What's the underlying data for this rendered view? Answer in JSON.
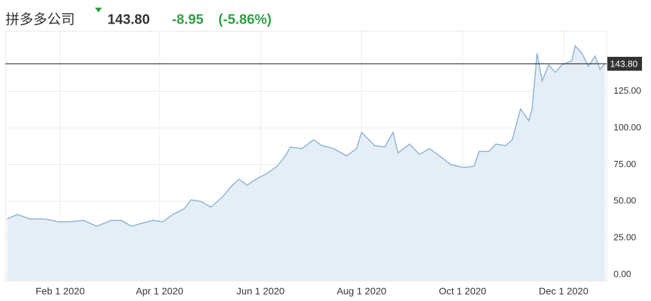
{
  "header": {
    "name": "拼多多公司",
    "price": "143.80",
    "change": "-8.95",
    "change_pct": "(-5.86%)"
  },
  "chart_data": {
    "type": "area",
    "x": [
      "2019-12-31",
      "2020-01-06",
      "2020-01-14",
      "2020-01-23",
      "2020-01-31",
      "2020-02-06",
      "2020-02-15",
      "2020-02-23",
      "2020-03-03",
      "2020-03-09",
      "2020-03-15",
      "2020-03-21",
      "2020-03-28",
      "2020-04-03",
      "2020-04-09",
      "2020-04-16",
      "2020-04-20",
      "2020-04-26",
      "2020-05-02",
      "2020-05-09",
      "2020-05-15",
      "2020-05-19",
      "2020-05-24",
      "2020-05-29",
      "2020-06-05",
      "2020-06-11",
      "2020-06-16",
      "2020-06-19",
      "2020-06-26",
      "2020-07-03",
      "2020-07-08",
      "2020-07-15",
      "2020-07-23",
      "2020-07-29",
      "2020-08-01",
      "2020-08-09",
      "2020-08-15",
      "2020-08-20",
      "2020-08-23",
      "2020-08-30",
      "2020-09-05",
      "2020-09-11",
      "2020-09-17",
      "2020-09-24",
      "2020-10-02",
      "2020-10-08",
      "2020-10-11",
      "2020-10-17",
      "2020-10-21",
      "2020-10-27",
      "2020-10-31",
      "2020-11-05",
      "2020-11-10",
      "2020-11-12",
      "2020-11-15",
      "2020-11-18",
      "2020-11-22",
      "2020-11-26",
      "2020-11-30",
      "2020-12-02",
      "2020-12-06",
      "2020-12-08",
      "2020-12-12",
      "2020-12-16",
      "2020-12-20",
      "2020-12-23",
      "2020-12-26"
    ],
    "series": [
      {
        "name": "拼多多公司",
        "color": "#8ab2d6",
        "fill": "#e5eef6",
        "values": [
          38,
          41,
          38,
          38,
          36,
          36,
          37,
          33,
          37,
          37,
          33,
          35,
          37,
          36,
          41,
          45,
          51,
          50,
          46,
          53,
          61,
          65,
          61,
          65,
          69,
          74,
          81,
          87,
          86,
          92,
          88,
          86,
          81,
          86,
          97,
          88,
          87,
          97,
          83,
          89,
          82,
          86,
          81,
          75,
          73,
          74,
          84,
          84,
          89,
          88,
          92,
          113,
          105,
          113,
          151,
          132,
          143,
          138,
          143,
          144,
          146,
          156,
          151,
          142,
          149,
          140,
          143.8
        ]
      }
    ],
    "xlim": [
      "2019-12-30",
      "2020-12-27"
    ],
    "xticks": [
      {
        "value": "2020-02-01",
        "label": "Feb 1 2020"
      },
      {
        "value": "2020-04-01",
        "label": "Apr 1 2020"
      },
      {
        "value": "2020-06-01",
        "label": "Jun 1 2020"
      },
      {
        "value": "2020-08-01",
        "label": "Aug 1 2020"
      },
      {
        "value": "2020-10-01",
        "label": "Oct 1 2020"
      },
      {
        "value": "2020-12-01",
        "label": "Dec 1 2020"
      }
    ],
    "ylim": [
      0,
      166
    ],
    "yticks": [
      {
        "value": 0,
        "label": "0.00"
      },
      {
        "value": 25,
        "label": "25.00"
      },
      {
        "value": 50,
        "label": "50.00"
      },
      {
        "value": 75,
        "label": "75.00"
      },
      {
        "value": 100,
        "label": "100.00"
      },
      {
        "value": 125,
        "label": "125.00"
      }
    ],
    "reference_line": {
      "value": 143.8,
      "label": "143.80"
    },
    "grid": true
  }
}
